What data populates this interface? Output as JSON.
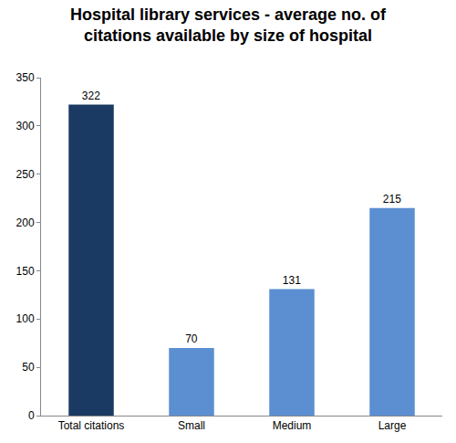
{
  "chart_data": {
    "type": "bar",
    "title": "Hospital library services - average no. of citations available by size of hospital",
    "categories": [
      "Total citations",
      "Small",
      "Medium",
      "Large"
    ],
    "values": [
      322,
      70,
      131,
      215
    ],
    "colors": [
      "#1b3a63",
      "#5b8fd1",
      "#5b8fd1",
      "#5b8fd1"
    ],
    "ylim": [
      0,
      350
    ],
    "yticks": [
      0,
      50,
      100,
      150,
      200,
      250,
      300,
      350
    ],
    "grid": false,
    "data_labels": true
  }
}
